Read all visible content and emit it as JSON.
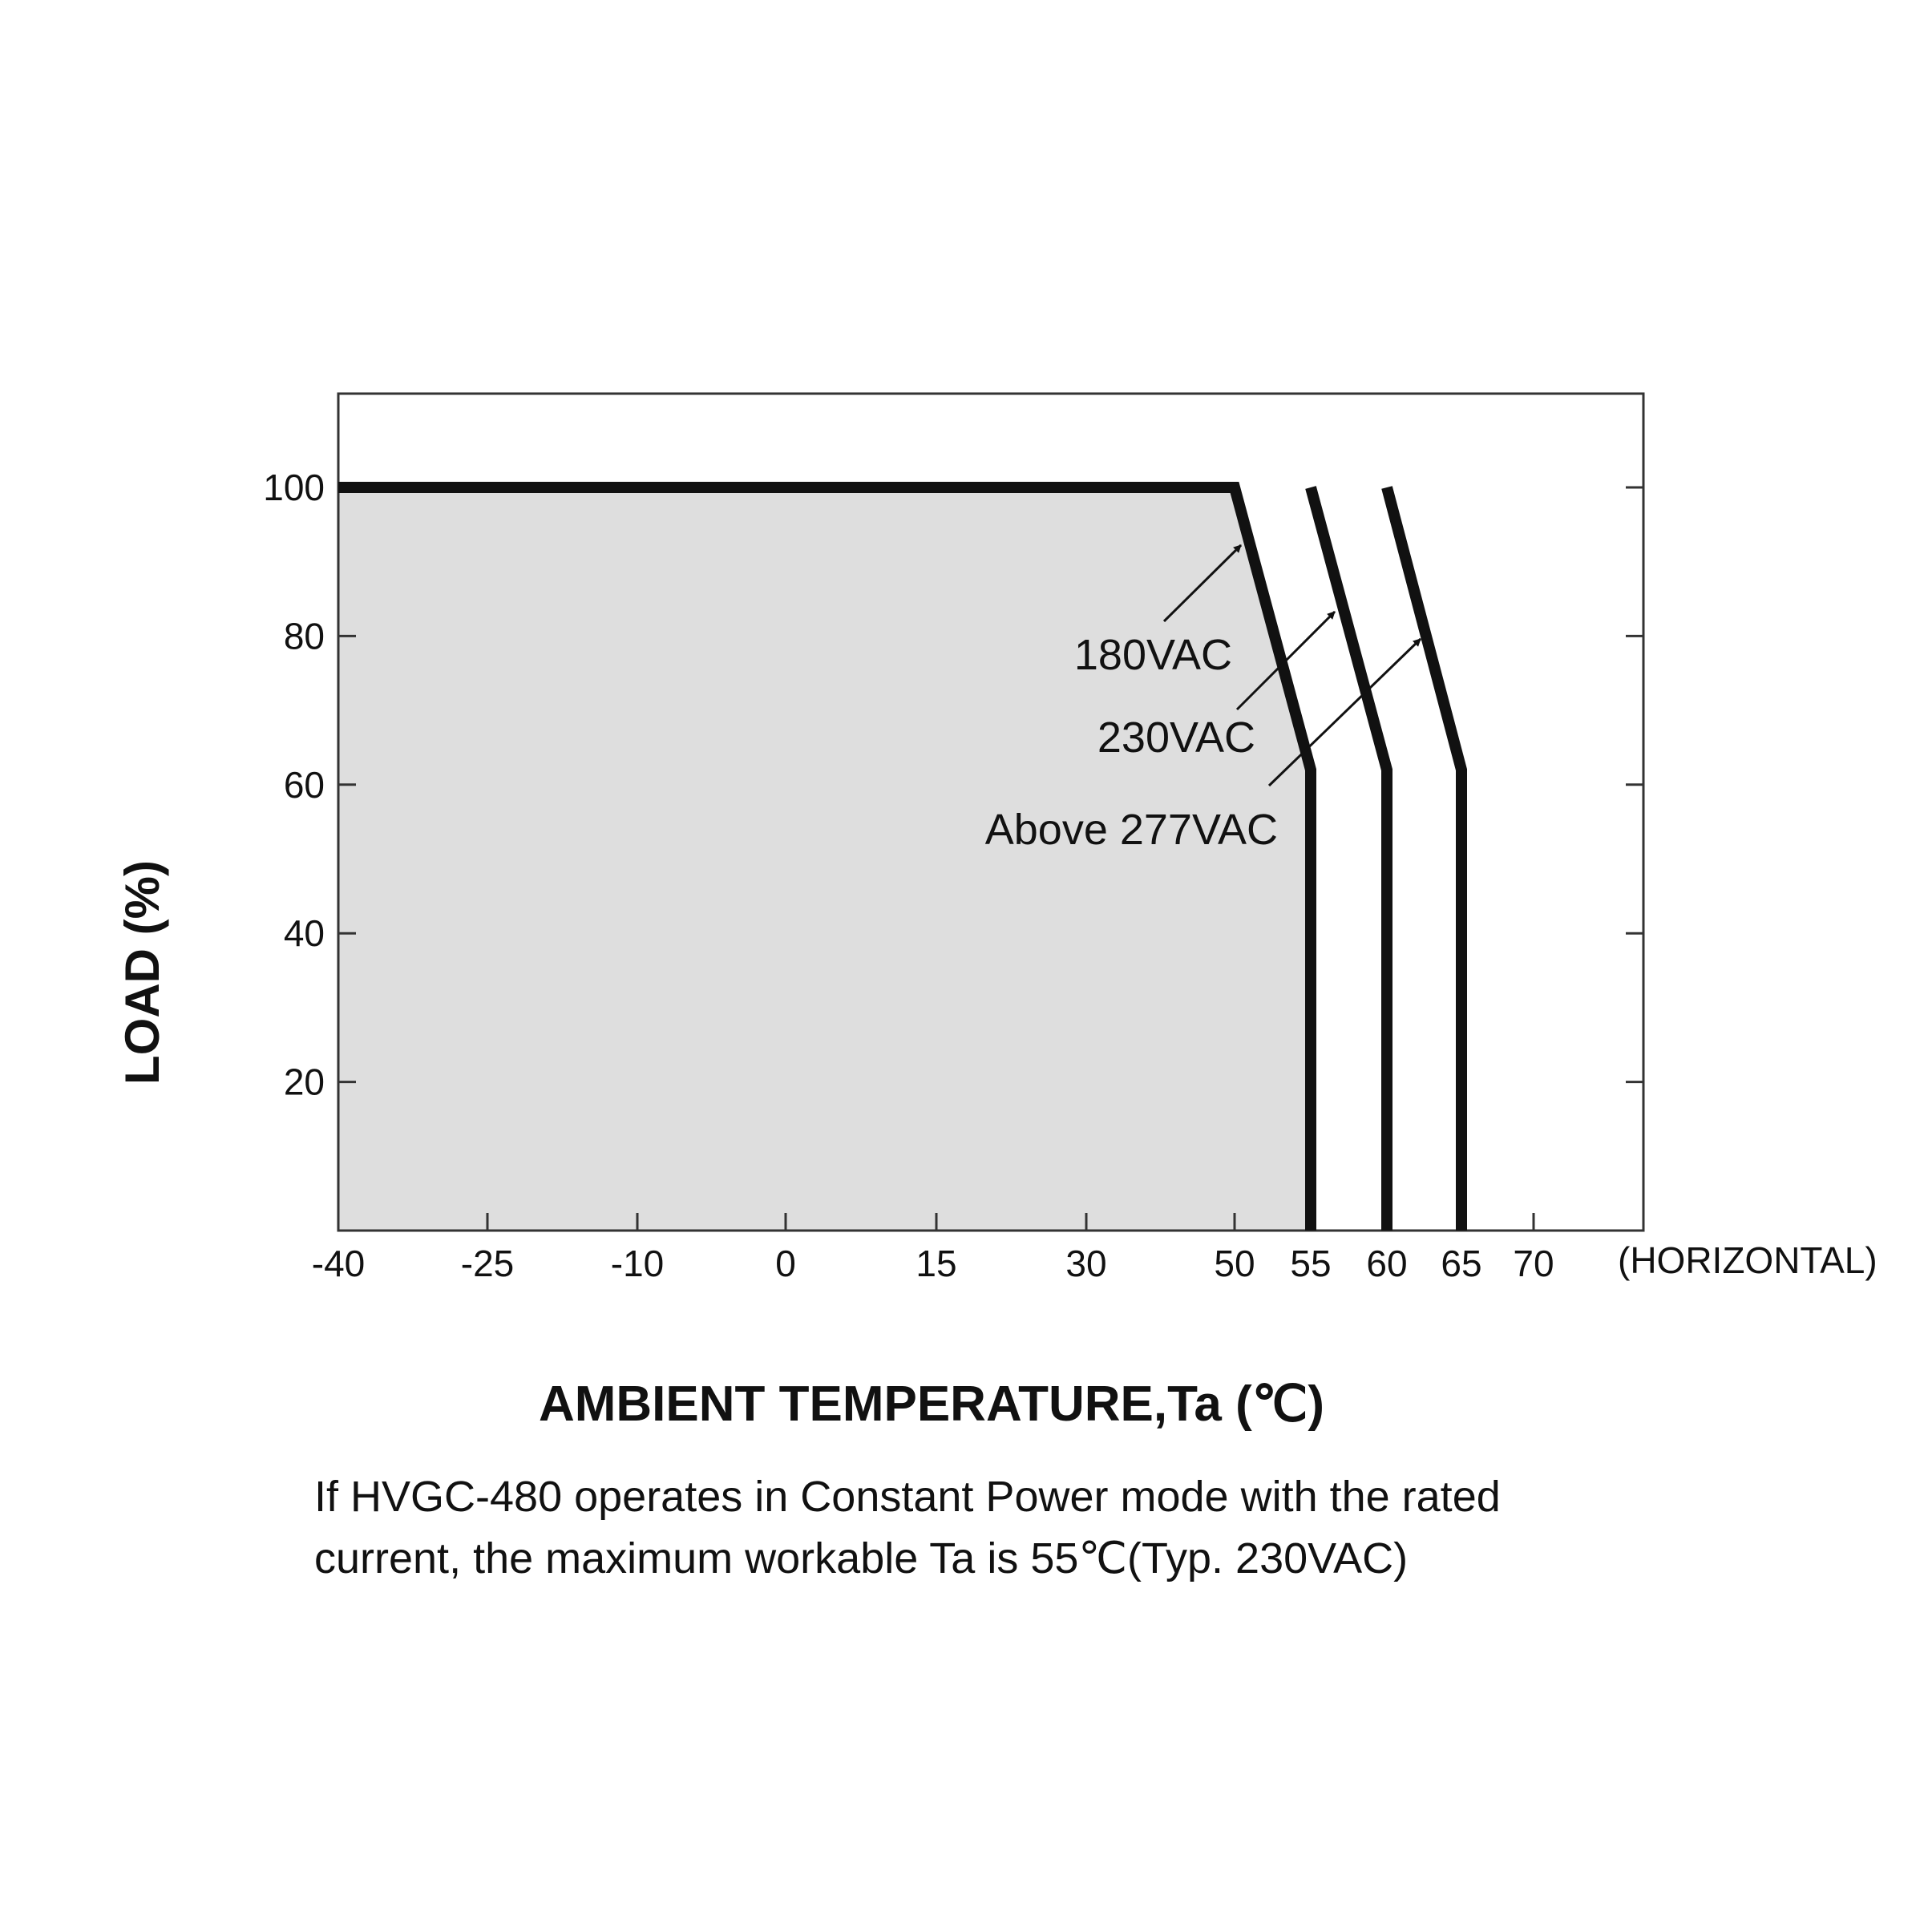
{
  "chart_data": {
    "type": "line",
    "xlabel": "AMBIENT TEMPERATURE,Ta (℃)",
    "ylabel": "LOAD (%)",
    "x_axis_suffix": "(HORIZONTAL)",
    "x_ticks": [
      -40,
      -25,
      -10,
      0,
      15,
      30,
      50,
      55,
      60,
      65,
      70
    ],
    "x_tick_labels": [
      "-40",
      "-25",
      "-10",
      "0",
      "15",
      "30",
      "50",
      "55",
      "60",
      "65",
      "70"
    ],
    "y_ticks": [
      20,
      40,
      60,
      80,
      100
    ],
    "y_tick_labels": [
      "20",
      "40",
      "60",
      "80",
      "100"
    ],
    "ylim": [
      0,
      112
    ],
    "grid": false,
    "colors": {
      "line": "#111111",
      "safe_area": "#dedede",
      "frame": "#333333"
    },
    "series": [
      {
        "name": "180VAC",
        "x": [
          -40,
          50,
          55,
          55
        ],
        "y": [
          100,
          100,
          62,
          0
        ]
      },
      {
        "name": "230VAC",
        "x": [
          55,
          60,
          60
        ],
        "y": [
          100,
          62,
          0
        ]
      },
      {
        "name": "Above 277VAC",
        "x": [
          60,
          65,
          65
        ],
        "y": [
          100,
          62,
          0
        ]
      }
    ]
  },
  "note": {
    "line1": "If HVGC-480 operates in Constant Power mode with the rated",
    "line2": "current, the maximum workable Ta is 55℃(Typ. 230VAC)"
  }
}
